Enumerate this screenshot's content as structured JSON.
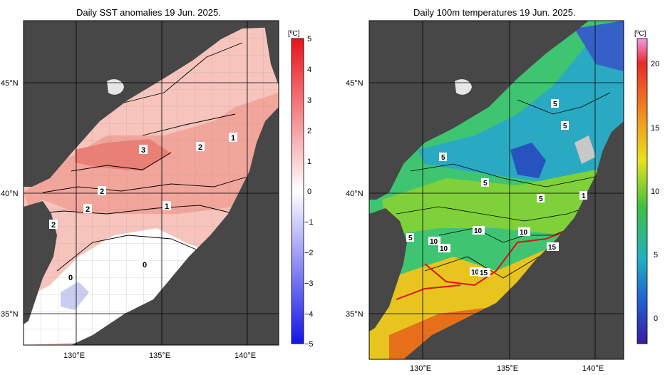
{
  "left_panel": {
    "title": "Daily SST anomalies 19 Jun. 2025.",
    "unit": "[ºC]",
    "colorbar_ticks": [
      "5",
      "4",
      "3",
      "2",
      "1",
      "0",
      "−1",
      "−2",
      "−3",
      "−4",
      "−5"
    ],
    "contour_labels": [
      "3",
      "2",
      "2",
      "2",
      "2",
      "1",
      "1",
      "0",
      "0"
    ]
  },
  "right_panel": {
    "title": "Daily 100m temperatures 19 Jun. 2025.",
    "unit": "[ºC]",
    "colorbar_ticks": [
      "20",
      "15",
      "10",
      "5",
      "0"
    ],
    "contour_labels": [
      "5",
      "5",
      "5",
      "5",
      "5",
      "5",
      "1",
      "10",
      "10",
      "10",
      "10",
      "15",
      "10",
      "15"
    ]
  },
  "axes": {
    "lat_labels": [
      "45°N",
      "40°N",
      "35°N"
    ],
    "lon_labels": [
      "130°E",
      "135°E",
      "140°E"
    ]
  },
  "colors": {
    "land": "#474747",
    "anomaly_high": "#e8141a",
    "anomaly_low": "#3030e0",
    "front": "#e01010"
  }
}
